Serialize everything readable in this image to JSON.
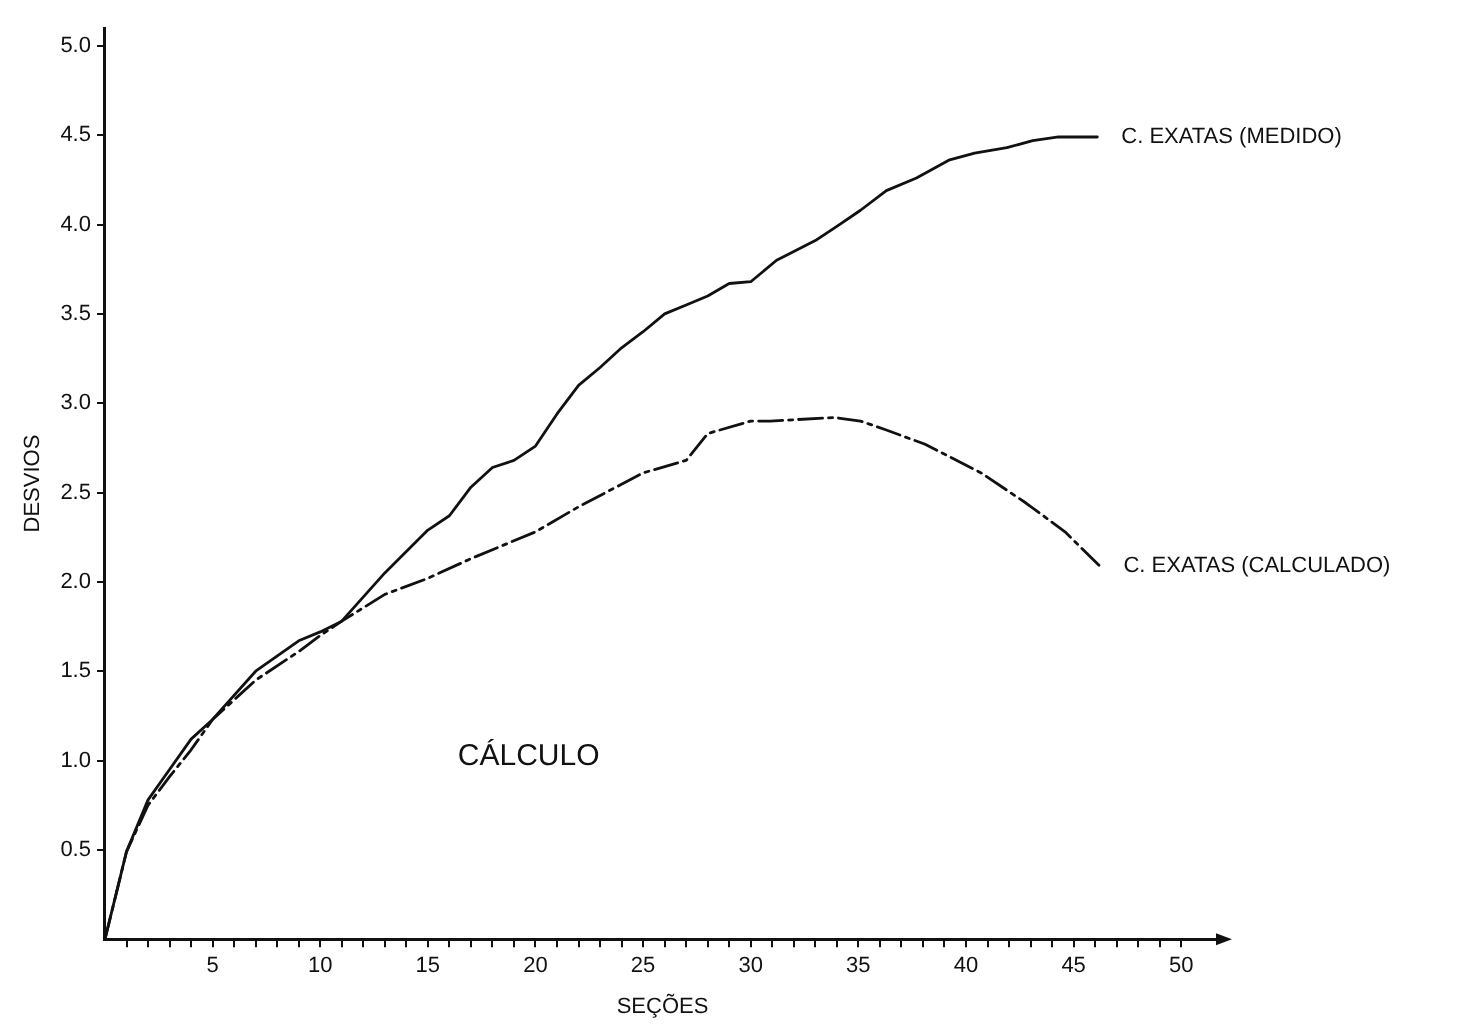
{
  "chart_data": {
    "type": "line",
    "xlabel": "SEÇÕES",
    "ylabel": "DESVIOS",
    "annotations": [
      "CÁLCULO"
    ],
    "xlim": [
      0,
      51.8
    ],
    "ylim": [
      0,
      5.1
    ],
    "xticks": [
      {
        "value": 1,
        "label": null
      },
      {
        "value": 2,
        "label": null
      },
      {
        "value": 3,
        "label": null
      },
      {
        "value": 4,
        "label": null
      },
      5,
      {
        "value": 6,
        "label": null
      },
      {
        "value": 7,
        "label": null
      },
      {
        "value": 8,
        "label": null
      },
      {
        "value": 9,
        "label": null
      },
      10,
      {
        "value": 11,
        "label": null
      },
      {
        "value": 12,
        "label": null
      },
      {
        "value": 13,
        "label": null
      },
      {
        "value": 14,
        "label": null
      },
      15,
      {
        "value": 16,
        "label": null
      },
      {
        "value": 17,
        "label": null
      },
      {
        "value": 18,
        "label": null
      },
      {
        "value": 19,
        "label": null
      },
      20,
      {
        "value": 21,
        "label": null
      },
      {
        "value": 22,
        "label": null
      },
      {
        "value": 23,
        "label": null
      },
      {
        "value": 24,
        "label": null
      },
      25,
      {
        "value": 26,
        "label": null
      },
      {
        "value": 27,
        "label": null
      },
      {
        "value": 28,
        "label": null
      },
      {
        "value": 29,
        "label": null
      },
      30,
      {
        "value": 31,
        "label": null
      },
      {
        "value": 32,
        "label": null
      },
      {
        "value": 33,
        "label": null
      },
      {
        "value": 34,
        "label": null
      },
      35,
      {
        "value": 36,
        "label": null
      },
      {
        "value": 37,
        "label": null
      },
      {
        "value": 38,
        "label": null
      },
      {
        "value": 39,
        "label": null
      },
      40,
      {
        "value": 41,
        "label": null
      },
      {
        "value": 42,
        "label": null
      },
      {
        "value": 43,
        "label": null
      },
      {
        "value": 44,
        "label": null
      },
      45,
      {
        "value": 46,
        "label": null
      },
      {
        "value": 47,
        "label": null
      },
      {
        "value": 48,
        "label": null
      },
      {
        "value": 49,
        "label": null
      },
      50
    ],
    "yticks": [
      0.5,
      {
        "value": 1,
        "label": "1.0"
      },
      1.5,
      {
        "value": 2,
        "label": "2.0"
      },
      2.5,
      {
        "value": 3,
        "label": "3.0"
      },
      3.5,
      {
        "value": 4,
        "label": "4.0"
      },
      4.5,
      {
        "value": 5,
        "label": "5.0"
      }
    ],
    "grid": false,
    "legend": false,
    "marker": "none",
    "series": [
      {
        "name": "C. EXATAS (MEDIDO)",
        "color": "#111111",
        "line_style": "solid",
        "x": [
          0,
          1,
          2,
          3,
          4,
          5,
          7,
          9,
          10,
          11,
          13,
          15,
          16,
          17,
          18,
          19,
          20,
          21,
          22,
          23,
          24,
          25,
          26,
          27,
          28,
          29,
          30,
          31.2,
          33,
          34,
          35.1,
          36.3,
          37.7,
          39.2,
          40.4,
          41.9,
          43.1,
          44.3,
          46.1
        ],
        "values": [
          0,
          0.49,
          0.78,
          0.95,
          1.12,
          1.23,
          1.5,
          1.67,
          1.72,
          1.78,
          2.05,
          2.29,
          2.37,
          2.53,
          2.64,
          2.68,
          2.76,
          2.94,
          3.1,
          3.2,
          3.31,
          3.4,
          3.5,
          3.55,
          3.6,
          3.67,
          3.68,
          3.8,
          3.91,
          3.99,
          4.08,
          4.19,
          4.26,
          4.36,
          4.4,
          4.43,
          4.47,
          4.49,
          4.49
        ]
      },
      {
        "name": "C. EXATAS (CALCULADO)",
        "color": "#111111",
        "line_style": "dashed",
        "x": [
          0,
          1,
          2,
          3,
          4,
          5,
          7,
          9,
          10,
          11,
          13,
          15,
          17,
          20,
          22,
          25,
          27,
          28,
          30,
          30.9,
          33.9,
          35.1,
          36.3,
          38.1,
          40.7,
          42.8,
          44.6,
          46.2
        ],
        "values": [
          0,
          0.49,
          0.75,
          0.91,
          1.06,
          1.23,
          1.45,
          1.61,
          1.7,
          1.78,
          1.93,
          2.02,
          2.13,
          2.28,
          2.42,
          2.61,
          2.68,
          2.83,
          2.9,
          2.9,
          2.92,
          2.9,
          2.85,
          2.77,
          2.61,
          2.44,
          2.28,
          2.09
        ]
      }
    ]
  }
}
